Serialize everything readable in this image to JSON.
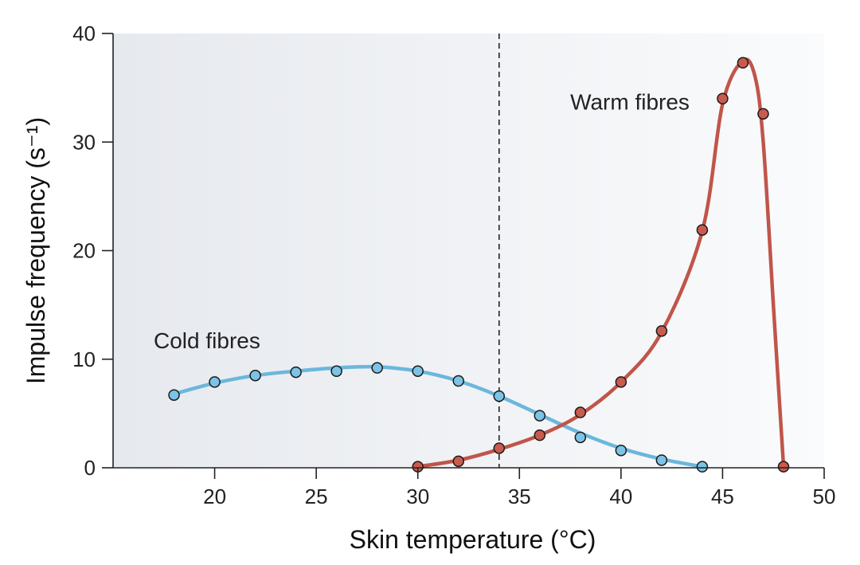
{
  "chart_data": {
    "type": "line",
    "xlabel": "Skin temperature (°C)",
    "ylabel": "Impulse frequency (s⁻¹)",
    "xlim": [
      15,
      50
    ],
    "ylim": [
      0,
      40
    ],
    "xticks": [
      20,
      25,
      30,
      35,
      40,
      45,
      50
    ],
    "yticks": [
      0,
      10,
      20,
      30,
      40
    ],
    "grid": false,
    "reference_line": {
      "x": 34,
      "style": "dashed"
    },
    "annotations": [
      {
        "text": "Cold fibres",
        "x": 17,
        "y": 11
      },
      {
        "text": "Warm fibres",
        "x": 37.5,
        "y": 33
      }
    ],
    "series": [
      {
        "name": "Cold fibres",
        "color": "#6bb7dc",
        "marker_color": "#7cc3e6",
        "x": [
          18,
          20,
          22,
          24,
          26,
          28,
          30,
          32,
          34,
          36,
          38,
          40,
          42,
          44
        ],
        "y": [
          6.7,
          7.9,
          8.5,
          8.8,
          8.9,
          9.2,
          8.9,
          8.0,
          6.6,
          4.8,
          2.8,
          1.6,
          0.7,
          0.1
        ]
      },
      {
        "name": "Warm fibres",
        "color": "#c0554a",
        "marker_color": "#c95b4e",
        "x": [
          30,
          32,
          34,
          36,
          38,
          40,
          42,
          44,
          45,
          46,
          47,
          48
        ],
        "y": [
          0.1,
          0.6,
          1.8,
          3.0,
          5.1,
          7.9,
          12.6,
          21.9,
          34.0,
          37.3,
          32.6,
          0.1
        ]
      }
    ],
    "curves": [
      {
        "name": "Cold fibres",
        "x": [
          18,
          20,
          22,
          24,
          26,
          28,
          30,
          32,
          34,
          36,
          38,
          40,
          42,
          44
        ],
        "y": [
          6.8,
          7.8,
          8.5,
          8.9,
          9.2,
          9.3,
          8.9,
          8.0,
          6.6,
          4.9,
          3.2,
          1.8,
          0.8,
          0.1
        ]
      },
      {
        "name": "Warm fibres",
        "x": [
          30,
          32,
          34,
          36,
          38,
          40,
          42,
          44,
          45,
          46,
          46.6,
          47,
          47.5,
          48
        ],
        "y": [
          0.1,
          0.7,
          1.7,
          3.0,
          4.9,
          7.9,
          12.5,
          21.8,
          33.5,
          37.5,
          36.0,
          30.0,
          15.0,
          0.1
        ]
      }
    ],
    "background": {
      "start": "#e6e9ee",
      "end": "#fafbfc"
    }
  }
}
